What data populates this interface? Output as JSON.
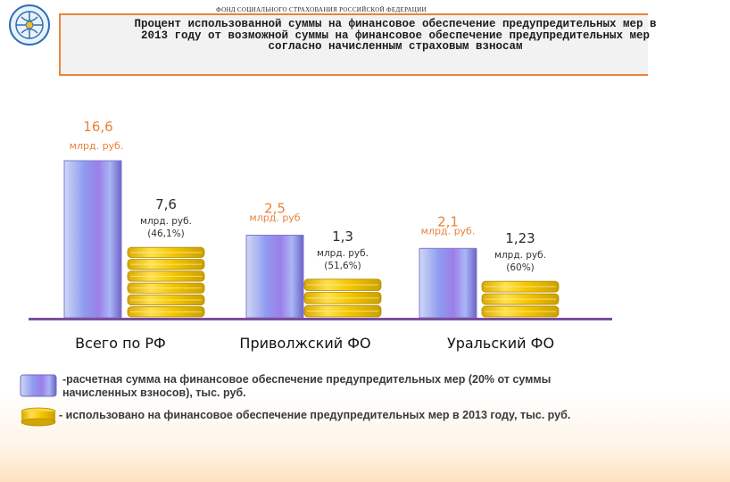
{
  "header": {
    "org_name": "ФОНД СОЦИАЛЬНОГО СТРАХОВАНИЯ РОССИЙСКОЙ ФЕДЕРАЦИИ",
    "title": "Процент использованной суммы на финансовое обеспечение предупредительных мер в\n2013 году от возможной суммы на финансовое обеспечение предупредительных мер\nсогласно начисленным страховым взносам"
  },
  "chart_data": {
    "type": "bar",
    "categories": [
      "Всего по РФ",
      "Приволжский ФО",
      "Уральский ФО"
    ],
    "series": [
      {
        "key": "calculated",
        "values": [
          16.6,
          2.5,
          2.1
        ],
        "value_labels": [
          "16,6",
          "2,5",
          "2,1"
        ],
        "unit_labels": [
          "млрд. руб.",
          "млрд. руб",
          "млрд. руб."
        ]
      },
      {
        "key": "used",
        "values": [
          7.6,
          1.3,
          1.23
        ],
        "value_labels": [
          "7,6",
          "1,3",
          "1,23"
        ],
        "unit_labels": [
          "млрд. руб.",
          "млрд. руб.",
          "млрд. руб."
        ],
        "percent_labels": [
          "(46,1%)",
          "(51,6%)",
          "(60%)"
        ]
      }
    ],
    "colors": {
      "calculated_value": "#e9813b",
      "used_value": "#2b2b2b",
      "baseline": "#7a4f9a",
      "coin": "#e8c200"
    }
  },
  "legend": {
    "calculated": "-расчетная сумма на финансовое обеспечение предупредительных мер (20% от суммы\n начисленных    взносов), тыс. руб.",
    "used": "- использовано на финансовое обеспечение предупредительных мер в 2013 году, тыс. руб."
  }
}
